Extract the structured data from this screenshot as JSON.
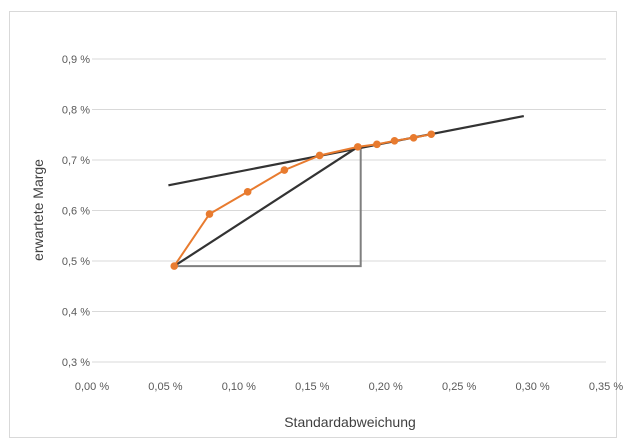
{
  "chart_data": {
    "type": "line",
    "title": "",
    "xlabel": "Standardabweichung",
    "ylabel": "erwartete Marge",
    "xlim": [
      0.0,
      0.35
    ],
    "ylim": [
      0.3,
      0.9
    ],
    "x_ticks": [
      "0,00 %",
      "0,05 %",
      "0,10 %",
      "0,15 %",
      "0,20 %",
      "0,25 %",
      "0,30 %",
      "0,35 %"
    ],
    "y_ticks": [
      "0,3 %",
      "0,4 %",
      "0,5 %",
      "0,6 %",
      "0,7 %",
      "0,8 %",
      "0,9 %"
    ],
    "grid": "horizontal",
    "colors": {
      "frontier": "#e87b2f",
      "line": "#333333",
      "triangle": "#7f7f7f",
      "grid": "#d9d9d9"
    },
    "series": [
      {
        "type": "line-with-markers",
        "points": [
          [
            0.056,
            0.49
          ],
          [
            0.08,
            0.593
          ],
          [
            0.106,
            0.637
          ],
          [
            0.131,
            0.68
          ],
          [
            0.155,
            0.709
          ],
          [
            0.181,
            0.726
          ],
          [
            0.194,
            0.731
          ],
          [
            0.206,
            0.738
          ],
          [
            0.219,
            0.744
          ],
          [
            0.231,
            0.751
          ]
        ]
      },
      {
        "type": "line",
        "points": [
          [
            0.052,
            0.65
          ],
          [
            0.294,
            0.787
          ]
        ]
      },
      {
        "type": "line",
        "points": [
          [
            0.056,
            0.49
          ],
          [
            0.181,
            0.726
          ]
        ]
      },
      {
        "type": "line",
        "points": [
          [
            0.056,
            0.49
          ],
          [
            0.183,
            0.49
          ],
          [
            0.183,
            0.726
          ]
        ]
      }
    ]
  }
}
